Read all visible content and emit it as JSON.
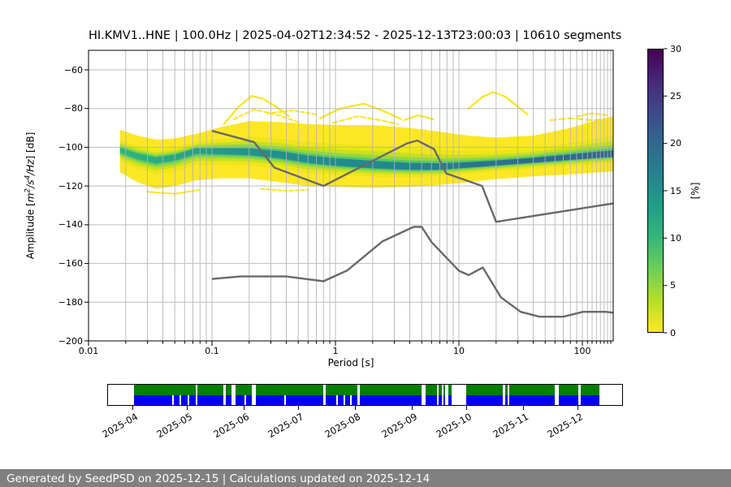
{
  "title": "HI.KMV1..HNE | 100.0Hz | 2025-04-02T12:34:52 - 2025-12-13T23:00:03 | 10610 segments",
  "main_plot": {
    "xlabel": "Period [s]",
    "ylabel_parts": [
      {
        "t": "Amplitude [",
        "sup": false,
        "i": false
      },
      {
        "t": "m",
        "sup": false,
        "i": true
      },
      {
        "t": "2",
        "sup": true,
        "i": true
      },
      {
        "t": "/s",
        "sup": false,
        "i": true
      },
      {
        "t": "4",
        "sup": true,
        "i": true
      },
      {
        "t": "/Hz",
        "sup": false,
        "i": true
      },
      {
        "t": "] [dB]",
        "sup": false,
        "i": false
      }
    ],
    "x_ticks": [
      {
        "v": 0.01,
        "label": "0.01"
      },
      {
        "v": 0.1,
        "label": "0.1"
      },
      {
        "v": 1,
        "label": "1"
      },
      {
        "v": 10,
        "label": "10"
      },
      {
        "v": 100,
        "label": "100"
      }
    ],
    "y_ticks": [
      {
        "v": -60,
        "label": "−60"
      },
      {
        "v": -80,
        "label": "−80"
      },
      {
        "v": -100,
        "label": "−100"
      },
      {
        "v": -120,
        "label": "−120"
      },
      {
        "v": -140,
        "label": "−140"
      },
      {
        "v": -160,
        "label": "−160"
      },
      {
        "v": -180,
        "label": "−180"
      },
      {
        "v": -200,
        "label": "−200"
      }
    ]
  },
  "colorbar": {
    "label": "[%]",
    "min": 0,
    "max": 30,
    "ticks": [
      0,
      5,
      10,
      15,
      20,
      25,
      30
    ],
    "gradient_bottom_to_top": [
      "#fde725",
      "#b5de2b",
      "#6ece58",
      "#35b779",
      "#1f9e89",
      "#26828e",
      "#31688e",
      "#3e4a89",
      "#482878",
      "#440154"
    ]
  },
  "chart_data": {
    "type": "heatmap",
    "title": "HI.KMV1..HNE | 100.0Hz | 2025-04-02T12:34:52 - 2025-12-13T23:00:03 | 10610 segments",
    "station": "HI.KMV1..HNE",
    "sampling_rate": "100.0Hz",
    "time_range": "2025-04-02T12:34:52 - 2025-12-13T23:00:03",
    "n_segments": 10610,
    "xlabel": "Period [s]",
    "ylabel": "Amplitude [m2/s4/Hz] [dB]",
    "xlim": [
      0.01,
      178
    ],
    "ylim": [
      -200,
      -50
    ],
    "x_scale": "log",
    "grid": true,
    "colorbar_label": "[%]",
    "colorbar_range": [
      0,
      30
    ],
    "ppsd_envelope": [
      {
        "p": 0.018,
        "hi": -91,
        "lo": -113,
        "mode": -101.5
      },
      {
        "p": 0.025,
        "hi": -94,
        "lo": -118,
        "mode": -104.5
      },
      {
        "p": 0.035,
        "hi": -96,
        "lo": -121.5,
        "mode": -106.5
      },
      {
        "p": 0.05,
        "hi": -95.5,
        "lo": -120,
        "mode": -105
      },
      {
        "p": 0.075,
        "hi": -93,
        "lo": -117,
        "mode": -101.5
      },
      {
        "p": 0.12,
        "hi": -89.5,
        "lo": -116,
        "mode": -102
      },
      {
        "p": 0.2,
        "hi": -86.5,
        "lo": -116,
        "mode": -102.5
      },
      {
        "p": 0.35,
        "hi": -87,
        "lo": -118,
        "mode": -104
      },
      {
        "p": 0.6,
        "hi": -88,
        "lo": -120,
        "mode": -106.5
      },
      {
        "p": 1.0,
        "hi": -88.5,
        "lo": -120.5,
        "mode": -108
      },
      {
        "p": 2.0,
        "hi": -88.5,
        "lo": -121,
        "mode": -109.5
      },
      {
        "p": 4.0,
        "hi": -90,
        "lo": -120.5,
        "mode": -110.5
      },
      {
        "p": 7.0,
        "hi": -92,
        "lo": -119.5,
        "mode": -110.5
      },
      {
        "p": 12,
        "hi": -94,
        "lo": -118,
        "mode": -109.5
      },
      {
        "p": 20,
        "hi": -95,
        "lo": -116.5,
        "mode": -108.5
      },
      {
        "p": 40,
        "hi": -94,
        "lo": -115,
        "mode": -107
      },
      {
        "p": 80,
        "hi": -90,
        "lo": -114,
        "mode": -105.5
      },
      {
        "p": 130,
        "hi": -86,
        "lo": -113,
        "mode": -104.5
      },
      {
        "p": 178,
        "hi": -84,
        "lo": -112.5,
        "mode": -104
      }
    ],
    "bands": [
      {
        "f": 0.0,
        "color": "#fde725"
      },
      {
        "f": 0.5,
        "color": "#eee51b"
      },
      {
        "f": 0.64,
        "color": "#c8e020"
      },
      {
        "f": 0.74,
        "color": "#93d741"
      },
      {
        "f": 0.82,
        "color": "#56c667"
      },
      {
        "f": 0.88,
        "color": "core"
      }
    ],
    "core_gradient": [
      {
        "o": 0,
        "c": "#2fb47c"
      },
      {
        "o": 0.28,
        "c": "#21918c"
      },
      {
        "o": 0.55,
        "c": "#23888e"
      },
      {
        "o": 0.8,
        "c": "#2e6d8e"
      },
      {
        "o": 1,
        "c": "#33658e"
      }
    ],
    "wisps": [
      {
        "pts": [
          [
            0.125,
            -88
          ],
          [
            0.165,
            -79
          ],
          [
            0.21,
            -73.5
          ],
          [
            0.26,
            -75
          ],
          [
            0.33,
            -79
          ],
          [
            0.42,
            -84
          ]
        ],
        "w": 2.2,
        "dash": null
      },
      {
        "pts": [
          [
            0.15,
            -85.5
          ],
          [
            0.22,
            -80.5
          ],
          [
            0.33,
            -83
          ],
          [
            0.5,
            -87
          ]
        ],
        "w": 2,
        "dash": "5 3"
      },
      {
        "pts": [
          [
            0.75,
            -85
          ],
          [
            1.1,
            -80
          ],
          [
            1.7,
            -77.5
          ],
          [
            2.4,
            -81
          ],
          [
            3.4,
            -85.5
          ]
        ],
        "w": 2.2,
        "dash": null
      },
      {
        "pts": [
          [
            0.95,
            -87.5
          ],
          [
            1.5,
            -84
          ],
          [
            2.3,
            -86
          ],
          [
            3.2,
            -88
          ]
        ],
        "w": 2,
        "dash": "6 3"
      },
      {
        "pts": [
          [
            12,
            -80
          ],
          [
            15.5,
            -74
          ],
          [
            19,
            -71.5
          ],
          [
            24,
            -74
          ],
          [
            30,
            -79
          ],
          [
            36,
            -83
          ]
        ],
        "w": 2.2,
        "dash": null
      },
      {
        "pts": [
          [
            3.6,
            -86
          ],
          [
            4.7,
            -83.5
          ],
          [
            6.2,
            -85.5
          ]
        ],
        "w": 2.2,
        "dash": null
      },
      {
        "pts": [
          [
            55,
            -86
          ],
          [
            80,
            -85
          ],
          [
            115,
            -86
          ],
          [
            150,
            -85.5
          ]
        ],
        "w": 2,
        "dash": "7 4"
      },
      {
        "pts": [
          [
            0.28,
            -82.5
          ],
          [
            0.45,
            -81
          ],
          [
            0.7,
            -83
          ]
        ],
        "w": 2,
        "dash": "4 3"
      },
      {
        "pts": [
          [
            90,
            -84
          ],
          [
            120,
            -82.5
          ],
          [
            160,
            -83.5
          ]
        ],
        "w": 2,
        "dash": "5 3"
      },
      {
        "pts": [
          [
            0.03,
            -123
          ],
          [
            0.05,
            -124
          ],
          [
            0.08,
            -122
          ]
        ],
        "w": 2,
        "dash": "4 2"
      },
      {
        "pts": [
          [
            0.25,
            -121.5
          ],
          [
            0.4,
            -122.5
          ],
          [
            0.6,
            -122
          ]
        ],
        "w": 2,
        "dash": "4 3"
      }
    ],
    "noise_models": {
      "nhnm": [
        [
          0.1,
          -91.5
        ],
        [
          0.22,
          -97.4
        ],
        [
          0.32,
          -110.5
        ],
        [
          0.8,
          -120
        ],
        [
          3.8,
          -98
        ],
        [
          4.6,
          -96.5
        ],
        [
          6.3,
          -101
        ],
        [
          7.9,
          -113.5
        ],
        [
          15.4,
          -120
        ],
        [
          20,
          -138.5
        ],
        [
          178,
          -129
        ]
      ],
      "nlnm": [
        [
          0.1,
          -168
        ],
        [
          0.17,
          -166.7
        ],
        [
          0.4,
          -166.7
        ],
        [
          0.8,
          -169.2
        ],
        [
          1.24,
          -163.7
        ],
        [
          2.4,
          -148.6
        ],
        [
          4.3,
          -141.1
        ],
        [
          5,
          -141.1
        ],
        [
          6,
          -149
        ],
        [
          10,
          -163.8
        ],
        [
          12,
          -166
        ],
        [
          15.6,
          -162.1
        ],
        [
          21.9,
          -177.5
        ],
        [
          31.6,
          -185
        ],
        [
          45,
          -187.5
        ],
        [
          70,
          -187.5
        ],
        [
          101,
          -185
        ],
        [
          154,
          -185
        ],
        [
          178,
          -185.4
        ]
      ]
    }
  },
  "timeline": {
    "coverage_start_frac": 0.0506,
    "coverage_end_frac": 0.9558,
    "rows": [
      {
        "name": "availability-row",
        "color": "#008000"
      },
      {
        "name": "data-row",
        "color": "#0000ee"
      }
    ],
    "gaps": [
      {
        "x": 0.082,
        "w": 2,
        "rows": "blue"
      },
      {
        "x": 0.0977,
        "w": 2,
        "rows": "blue"
      },
      {
        "x": 0.1152,
        "w": 2,
        "rows": "blue"
      },
      {
        "x": 0.1326,
        "w": 2,
        "rows": "both"
      },
      {
        "x": 0.192,
        "w": 3,
        "rows": "both"
      },
      {
        "x": 0.2086,
        "w": 5,
        "rows": "both"
      },
      {
        "x": 0.2373,
        "w": 2,
        "rows": "blue"
      },
      {
        "x": 0.2531,
        "w": 4.5,
        "rows": "both"
      },
      {
        "x": 0.3229,
        "w": 2,
        "rows": "blue"
      },
      {
        "x": 0.4066,
        "w": 3,
        "rows": "both"
      },
      {
        "x": 0.4345,
        "w": 2,
        "rows": "blue"
      },
      {
        "x": 0.4502,
        "w": 2,
        "rows": "blue"
      },
      {
        "x": 0.4642,
        "w": 2,
        "rows": "blue"
      },
      {
        "x": 0.4799,
        "w": 2.5,
        "rows": "both"
      },
      {
        "x": 0.6178,
        "w": 4.5,
        "rows": "both"
      },
      {
        "x": 0.651,
        "w": 2,
        "rows": "both"
      },
      {
        "x": 0.6606,
        "w": 2,
        "rows": "both"
      },
      {
        "x": 0.6675,
        "w": 4,
        "rows": "both"
      },
      {
        "x": 0.6832,
        "w": 17.5,
        "rows": "both"
      },
      {
        "x": 0.7924,
        "w": 2.5,
        "rows": "both"
      },
      {
        "x": 0.802,
        "w": 2,
        "rows": "both"
      },
      {
        "x": 0.904,
        "w": 5,
        "rows": "both"
      },
      {
        "x": 0.9546,
        "w": 2.5,
        "rows": "both"
      }
    ],
    "month_ticks": [
      {
        "f": 0.0474,
        "label": "2025-04"
      },
      {
        "f": 0.1532,
        "label": "2025-05"
      },
      {
        "f": 0.2638,
        "label": "2025-06"
      },
      {
        "f": 0.3697,
        "label": "2025-07"
      },
      {
        "f": 0.4802,
        "label": "2025-08"
      },
      {
        "f": 0.5908,
        "label": "2025-09"
      },
      {
        "f": 0.6967,
        "label": "2025-10"
      },
      {
        "f": 0.8073,
        "label": "2025-11"
      },
      {
        "f": 0.9131,
        "label": "2025-12"
      }
    ]
  },
  "footer": {
    "text": "Generated by SeedPSD on 2025-12-15 | Calculations updated on 2025-12-14",
    "bg": "#808080",
    "fg": "#ffffff"
  },
  "colors": {
    "grid": "#b2b2b2",
    "noise_model_line": "#696969",
    "frame": "#000000",
    "background": "#ffffff"
  }
}
